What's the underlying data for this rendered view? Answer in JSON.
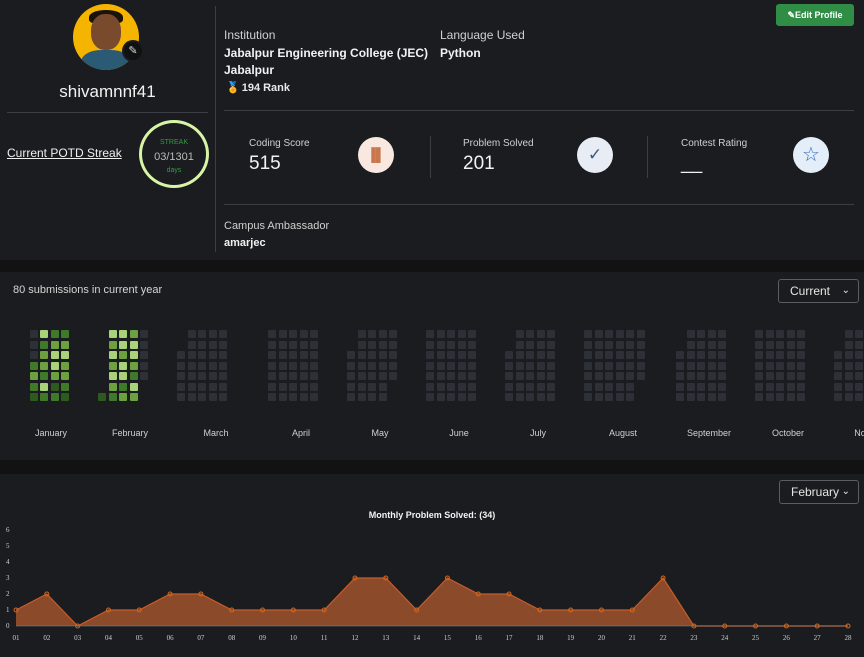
{
  "profile": {
    "username": "shivamnnf41",
    "edit_button": "Edit Profile",
    "potd_link": "Current POTD Streak",
    "streak_label": "STREAK",
    "streak_value": "03",
    "streak_total": "/1301",
    "streak_unit": "days",
    "institution_label": "Institution",
    "institution_line1": "Jabalpur Engineering College (JEC)",
    "institution_line2": "Jabalpur",
    "rank": "194 Rank",
    "language_label": "Language Used",
    "language": "Python",
    "campus_label": "Campus Ambassador",
    "campus_value": "amarjec"
  },
  "stats": [
    {
      "label": "Coding Score",
      "value": "515",
      "icon": "bar-chart-icon",
      "icon_glyph": "▐▌",
      "icon_bg": "#f9e8e0",
      "icon_color": "#c9784e"
    },
    {
      "label": "Problem Solved",
      "value": "201",
      "icon": "check-circle-icon",
      "icon_glyph": "✓",
      "icon_bg": "#e7ecf5",
      "icon_color": "#3d5a80"
    },
    {
      "label": "Contest Rating",
      "value": "__",
      "icon": "star-icon",
      "icon_glyph": "☆",
      "icon_bg": "#e4eef8",
      "icon_color": "#2e6db4"
    }
  ],
  "heatmap": {
    "title": "80 submissions in current year",
    "select_value": "Current",
    "months": [
      "January",
      "February",
      "March",
      "April",
      "May",
      "June",
      "July",
      "August",
      "September",
      "October",
      "No"
    ],
    "colors": {
      "empty": "#2d3036",
      "l1": "#2d5a1e",
      "l2": "#3f7a2a",
      "l3": "#6da03f",
      "l4": "#a9d27a"
    }
  },
  "chart_data": {
    "type": "area",
    "title": "Monthly Problem Solved: (34)",
    "select_value": "February",
    "x": [
      "01",
      "02",
      "03",
      "04",
      "05",
      "06",
      "07",
      "08",
      "09",
      "10",
      "11",
      "12",
      "13",
      "14",
      "15",
      "16",
      "17",
      "18",
      "19",
      "20",
      "21",
      "22",
      "23",
      "24",
      "25",
      "26",
      "27",
      "28"
    ],
    "values": [
      1,
      2,
      0,
      1,
      1,
      2,
      2,
      1,
      1,
      1,
      1,
      3,
      3,
      1,
      3,
      2,
      2,
      1,
      1,
      1,
      1,
      3,
      0,
      0,
      0,
      0,
      0,
      0
    ],
    "y_ticks": [
      "0",
      "1",
      "2",
      "3",
      "4",
      "5",
      "6"
    ],
    "ylim": [
      0,
      6
    ],
    "grid": false,
    "colors": {
      "fill": "#a0522d",
      "line": "#c75b2a",
      "point": "#d2691e"
    }
  }
}
